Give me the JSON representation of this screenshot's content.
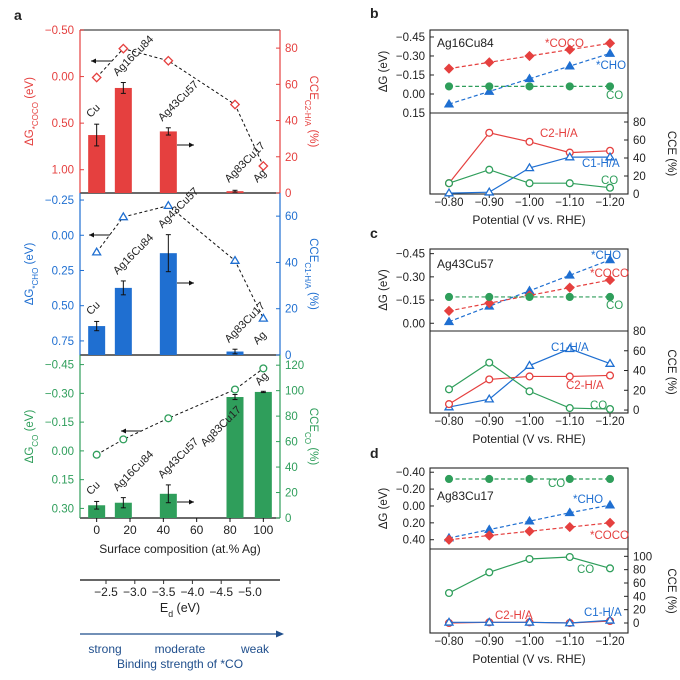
{
  "colors": {
    "red": "#e5403f",
    "blue": "#1f6fd1",
    "green": "#2f9e5b",
    "dark": "#222222",
    "navy": "#1f4e8c"
  },
  "chart_data": [
    {
      "panel": "a",
      "type": "bar+line",
      "xlabel": "Surface composition (at.% Ag)",
      "xlim": [
        -10,
        110
      ],
      "x_ticks": [
        0,
        20,
        40,
        60,
        80,
        100
      ],
      "compositions": [
        "Cu",
        "Ag16Cu84",
        "Ag43Cu57",
        "Ag83Cu17",
        "Ag"
      ],
      "x": [
        0,
        16,
        43,
        83,
        100
      ],
      "subplots": [
        {
          "color": "red",
          "ylabel_left": {
            "main": "ΔG",
            "sub": "*COCO",
            "tail": " (eV)"
          },
          "ylabel_right": {
            "main": "CCE",
            "sub": "C2-H/A",
            "tail": " (%)"
          },
          "ylim_left": [
            -0.5,
            1.25
          ],
          "yticks_left": [
            "-0.50",
            "0.00",
            "0.50",
            "1.00"
          ],
          "ylim_right": [
            0,
            90
          ],
          "yticks_right": [
            0,
            20,
            40,
            60,
            80
          ],
          "dG": [
            0.01,
            -0.3,
            -0.17,
            0.3,
            0.96
          ],
          "marker": "diamond",
          "cce": [
            32,
            58,
            34,
            1,
            0
          ],
          "cce_err": [
            6,
            3,
            2,
            0.5,
            0
          ]
        },
        {
          "color": "blue",
          "ylabel_left": {
            "main": "ΔG",
            "sub": "*CHO",
            "tail": " (eV)"
          },
          "ylabel_right": {
            "main": "CCE",
            "sub": "C1-H/A",
            "tail": " (%)"
          },
          "ylim_left": [
            -0.3,
            0.85
          ],
          "yticks_left": [
            "-0.25",
            "0.00",
            "0.25",
            "0.50",
            "0.75"
          ],
          "ylim_right": [
            0,
            70
          ],
          "yticks_right": [
            0,
            20,
            40,
            60
          ],
          "dG": [
            0.12,
            -0.13,
            -0.21,
            0.18,
            0.59
          ],
          "marker": "triangle",
          "cce": [
            12.5,
            29,
            44,
            1.5,
            0
          ],
          "cce_err": [
            2,
            3,
            8,
            1,
            0
          ]
        },
        {
          "color": "green",
          "ylabel_left": {
            "main": "ΔG",
            "sub": "CO",
            "tail": " (eV)"
          },
          "ylabel_right": {
            "main": "CCE",
            "sub": "CO",
            "tail": " (%)"
          },
          "ylim_left": [
            -0.5,
            0.35
          ],
          "yticks_left": [
            "-0.45",
            "-0.30",
            "-0.15",
            "0.00",
            "0.15",
            "0.30"
          ],
          "ylim_right": [
            0,
            128
          ],
          "yticks_right": [
            0,
            20,
            40,
            60,
            80,
            100,
            120
          ],
          "dG": [
            0.02,
            -0.06,
            -0.17,
            -0.32,
            -0.43
          ],
          "marker": "circle",
          "cce": [
            10,
            12,
            19,
            95,
            99
          ],
          "cce_err": [
            3,
            4,
            7,
            2,
            0.5
          ]
        }
      ],
      "ed_axis": {
        "label_main": "E",
        "label_sub": "d",
        "label_tail": " (eV)",
        "ticks": [
          "-2.5",
          "-3.0",
          "-3.5",
          "-4.0",
          "-4.5",
          "-5.0"
        ]
      },
      "binding": {
        "strong": "strong",
        "moderate": "moderate",
        "weak": "weak",
        "label": "Binding strength of *CO"
      }
    },
    {
      "panel": "b",
      "type": "line",
      "title": "Ag16Cu84",
      "x": [
        -0.8,
        -0.9,
        -1.0,
        -1.1,
        -1.2
      ],
      "x_ticks": [
        "-0.80",
        "-0.90",
        "-1.00",
        "-1.10",
        "-1.20"
      ],
      "xlabel": "Potential (V vs. RHE)",
      "ylabel_top": "ΔG (eV)",
      "ylim_top": [
        -0.505,
        0.15
      ],
      "yticks_top": [
        "-0.45",
        "-0.30",
        "-0.15",
        "0.00",
        "0.15"
      ],
      "ylabel_bottom": "CCE (%)",
      "ylim_bottom": [
        0,
        90
      ],
      "yticks_bottom": [
        0,
        20,
        40,
        60,
        80
      ],
      "dG_series": [
        {
          "name": "*COCO",
          "color": "red",
          "marker": "diamond",
          "values": [
            -0.2,
            -0.25,
            -0.3,
            -0.35,
            -0.4
          ]
        },
        {
          "name": "*CHO",
          "color": "blue",
          "marker": "triangle",
          "values": [
            0.08,
            -0.02,
            -0.12,
            -0.22,
            -0.32
          ]
        },
        {
          "name": "CO",
          "color": "green",
          "marker": "circle",
          "values": [
            -0.06,
            -0.06,
            -0.06,
            -0.06,
            -0.06
          ]
        }
      ],
      "cce_series": [
        {
          "name": "C2-H/A",
          "color": "red",
          "marker": "circle",
          "values": [
            12,
            68,
            58,
            46,
            48
          ]
        },
        {
          "name": "C1-H/A",
          "color": "blue",
          "marker": "triangle",
          "values": [
            1,
            2,
            29,
            41,
            41
          ]
        },
        {
          "name": "CO",
          "color": "green",
          "marker": "circle",
          "values": [
            12,
            27,
            12,
            12,
            7
          ]
        }
      ]
    },
    {
      "panel": "c",
      "type": "line",
      "title": "Ag43Cu57",
      "x": [
        -0.8,
        -0.9,
        -1.0,
        -1.1,
        -1.2
      ],
      "x_ticks": [
        "-0.80",
        "-0.90",
        "-1.00",
        "-1.10",
        "-1.20"
      ],
      "xlabel": "Potential (V vs. RHE)",
      "ylabel_top": "ΔG (eV)",
      "ylim_top": [
        -0.48,
        0.05
      ],
      "yticks_top": [
        "-0.45",
        "-0.30",
        "-0.15",
        "0.00"
      ],
      "ylabel_bottom": "CCE (%)",
      "ylim_bottom": [
        -3,
        80
      ],
      "yticks_bottom": [
        0,
        20,
        40,
        60,
        80
      ],
      "dG_series": [
        {
          "name": "*CHO",
          "color": "blue",
          "marker": "triangle",
          "values": [
            -0.01,
            -0.11,
            -0.21,
            -0.31,
            -0.41
          ]
        },
        {
          "name": "*COCO",
          "color": "red",
          "marker": "diamond",
          "values": [
            -0.08,
            -0.13,
            -0.18,
            -0.23,
            -0.28
          ]
        },
        {
          "name": "CO",
          "color": "green",
          "marker": "circle",
          "values": [
            -0.17,
            -0.17,
            -0.17,
            -0.17,
            -0.17
          ]
        }
      ],
      "cce_series": [
        {
          "name": "C1-H/A",
          "color": "blue",
          "marker": "triangle",
          "values": [
            3,
            11,
            45,
            62,
            47
          ]
        },
        {
          "name": "C2-H/A",
          "color": "red",
          "marker": "circle",
          "values": [
            6,
            31,
            34,
            34,
            35
          ]
        },
        {
          "name": "CO",
          "color": "green",
          "marker": "circle",
          "values": [
            21,
            48,
            19,
            2,
            1
          ]
        }
      ]
    },
    {
      "panel": "d",
      "type": "line",
      "title": "Ag83Cu17",
      "x": [
        -0.8,
        -0.9,
        -1.0,
        -1.1,
        -1.2
      ],
      "x_ticks": [
        "-0.80",
        "-0.90",
        "-1.00",
        "-1.10",
        "-1.20"
      ],
      "xlabel": "Potential (V vs. RHE)",
      "ylabel_top": "ΔG (eV)",
      "ylim_top": [
        -0.45,
        0.51
      ],
      "yticks_top": [
        "-0.40",
        "-0.20",
        "0.00",
        "0.20",
        "0.40"
      ],
      "ylabel_bottom": "CCE (%)",
      "ylim_bottom": [
        -15,
        111
      ],
      "yticks_bottom": [
        0,
        20,
        40,
        60,
        80,
        100
      ],
      "dG_series": [
        {
          "name": "CO",
          "color": "green",
          "marker": "circle",
          "values": [
            -0.32,
            -0.32,
            -0.32,
            -0.32,
            -0.32
          ]
        },
        {
          "name": "*CHO",
          "color": "blue",
          "marker": "triangle",
          "values": [
            0.38,
            0.28,
            0.18,
            0.08,
            -0.01
          ]
        },
        {
          "name": "*COCO",
          "color": "red",
          "marker": "diamond",
          "values": [
            0.4,
            0.35,
            0.3,
            0.25,
            0.2
          ]
        }
      ],
      "cce_series": [
        {
          "name": "CO",
          "color": "green",
          "marker": "circle",
          "values": [
            45,
            76,
            96,
            99,
            82
          ]
        },
        {
          "name": "C2-H/A",
          "color": "red",
          "marker": "circle",
          "values": [
            0,
            1,
            1,
            0,
            3
          ]
        },
        {
          "name": "C1-H/A",
          "color": "blue",
          "marker": "triangle",
          "values": [
            1,
            1,
            1,
            0,
            4
          ]
        }
      ]
    }
  ]
}
